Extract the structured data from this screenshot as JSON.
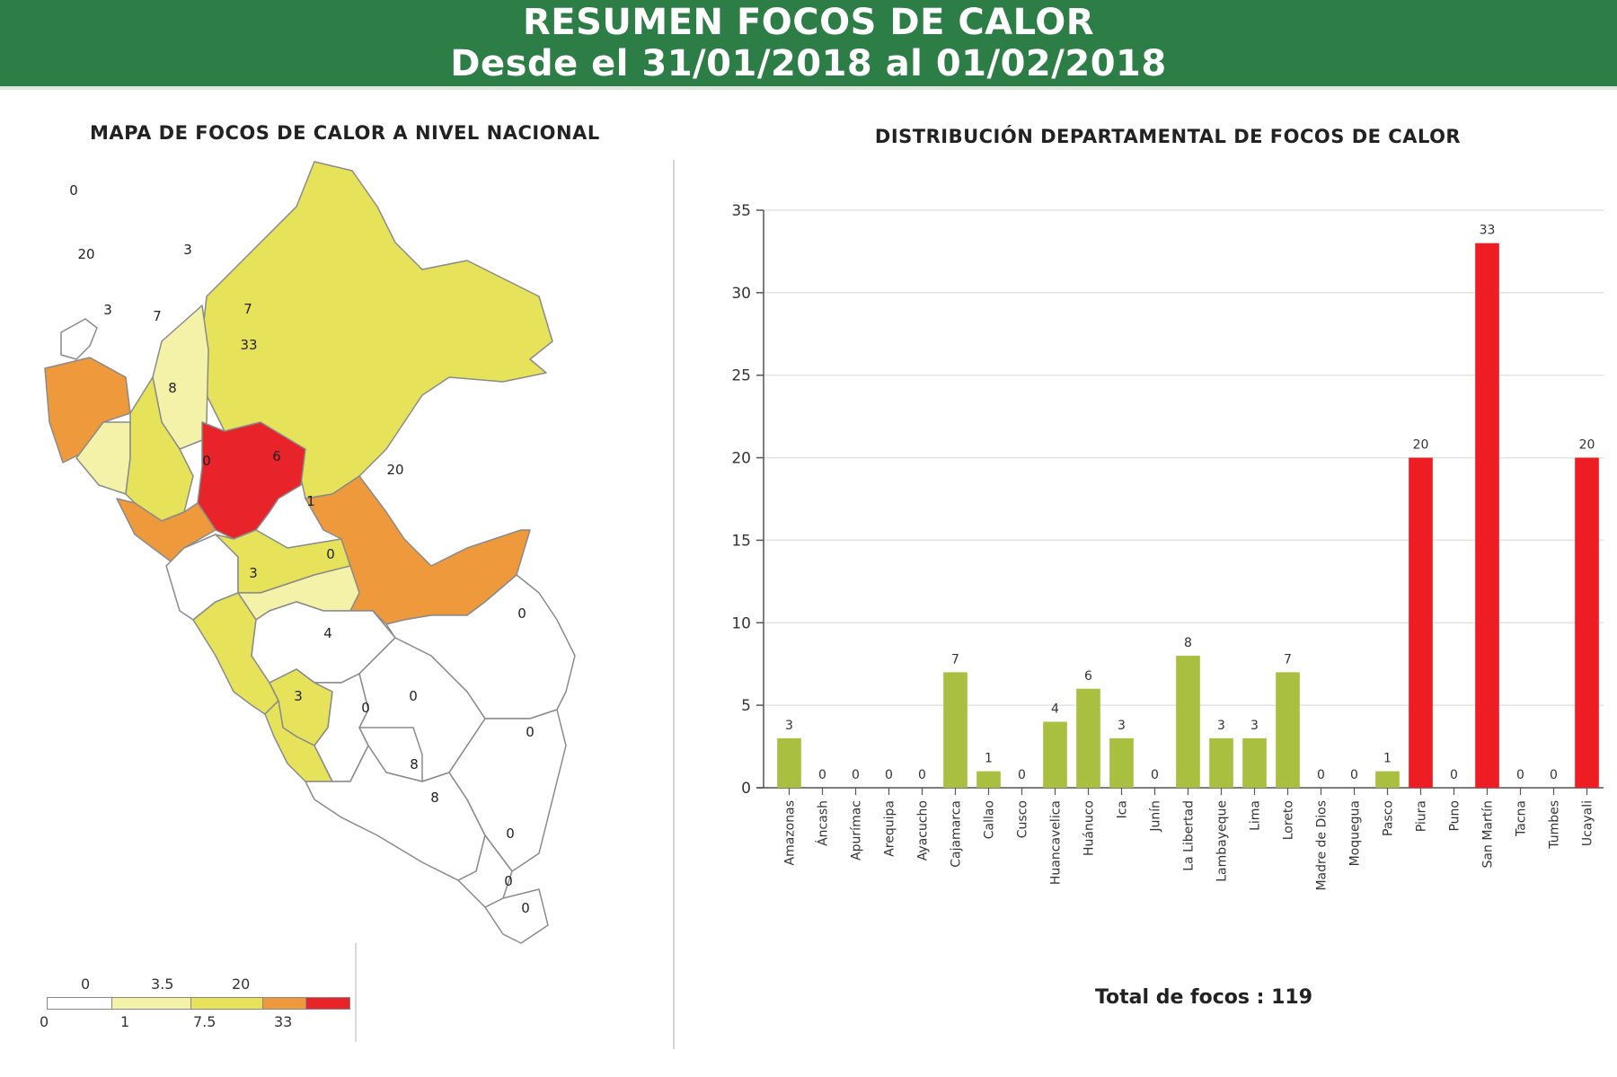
{
  "header": {
    "title_line1": "RESUMEN FOCOS DE CALOR",
    "title_line2": "Desde el 31/01/2018 al 01/02/2018"
  },
  "map": {
    "title": "MAPA DE FOCOS DE CALOR A NIVEL NACIONAL",
    "region_labels": [
      "0",
      "20",
      "3",
      "7",
      "3",
      "7",
      "33",
      "8",
      "0",
      "6",
      "20",
      "1",
      "0",
      "3",
      "4",
      "3",
      "0",
      "0",
      "0",
      "8",
      "0",
      "8",
      "0",
      "0",
      "0"
    ],
    "legend": {
      "top_ticks": [
        "0",
        "3.5",
        "20"
      ],
      "bottom_ticks": [
        "0",
        "1",
        "7.5",
        "33"
      ],
      "colors": [
        "#ffffff",
        "#f4f1a8",
        "#e6e35a",
        "#ee9a3c",
        "#e8232a"
      ]
    }
  },
  "chart_data": {
    "type": "bar",
    "title": "DISTRIBUCIÓN DEPARTAMENTAL DE FOCOS DE CALOR",
    "xlabel": "",
    "ylabel": "",
    "ylim": [
      0,
      35
    ],
    "yticks": [
      0,
      5,
      10,
      15,
      20,
      25,
      30,
      35
    ],
    "grid": true,
    "categories": [
      "Amazonas",
      "Áncash",
      "Apurímac",
      "Arequipa",
      "Ayacucho",
      "Cajamarca",
      "Callao",
      "Cusco",
      "Huancavelica",
      "Huánuco",
      "Ica",
      "Junín",
      "La Libertad",
      "Lambayeque",
      "Lima",
      "Loreto",
      "Madre de Dios",
      "Moquegua",
      "Pasco",
      "Piura",
      "Puno",
      "San Martín",
      "Tacna",
      "Tumbes",
      "Ucayali"
    ],
    "values": [
      3,
      0,
      0,
      0,
      0,
      7,
      1,
      0,
      4,
      6,
      3,
      0,
      8,
      3,
      3,
      7,
      0,
      0,
      1,
      20,
      0,
      33,
      0,
      0,
      20
    ],
    "colors": {
      "low": "#a9bf3f",
      "high": "#ee1c23"
    },
    "high_threshold": 20
  },
  "total": {
    "label": "Total de focos :",
    "value": "119"
  }
}
